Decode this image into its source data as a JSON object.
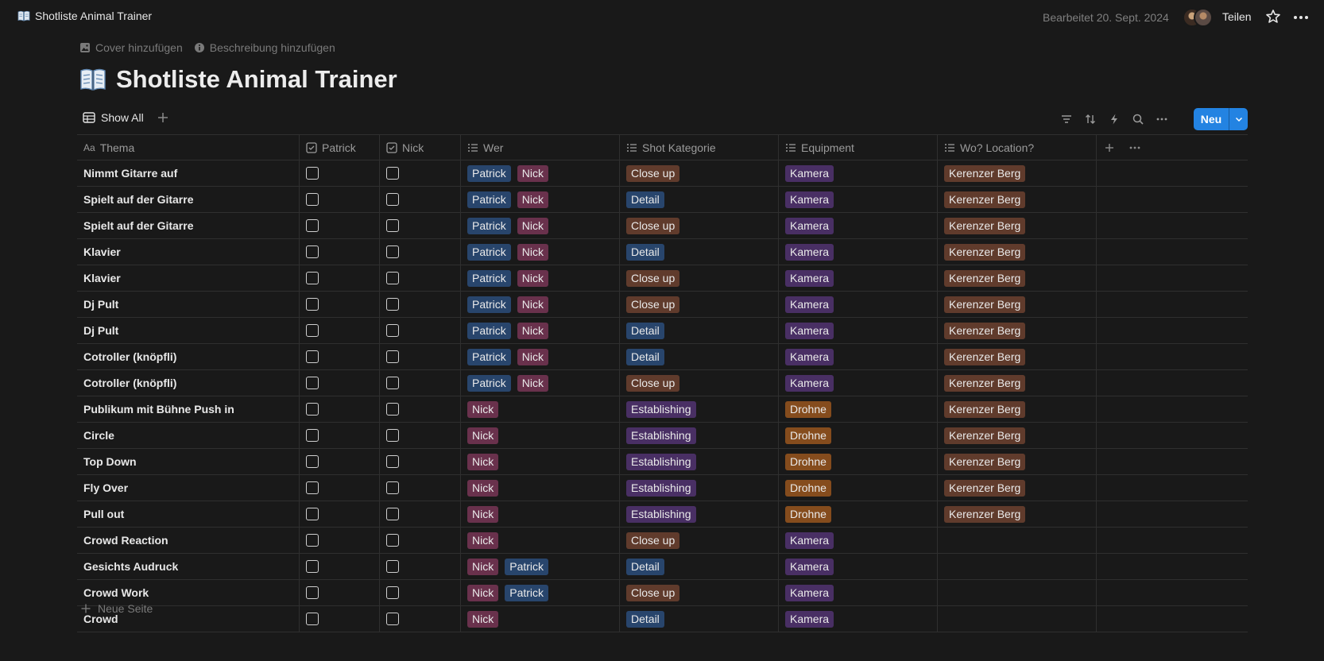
{
  "topbar": {
    "breadcrumb": "Shotliste Animal Trainer",
    "edited": "Bearbeitet 20. Sept. 2024",
    "share_label": "Teilen"
  },
  "header": {
    "add_cover": "Cover hinzufügen",
    "add_description": "Beschreibung hinzufügen",
    "title": "Shotliste Animal Trainer"
  },
  "view": {
    "tab_label": "Show All",
    "new_label": "Neu"
  },
  "table": {
    "columns": [
      {
        "label": "Thema",
        "prefix": "Aa"
      },
      {
        "label": "Patrick"
      },
      {
        "label": "Nick"
      },
      {
        "label": "Wer"
      },
      {
        "label": "Shot Kategorie"
      },
      {
        "label": "Equipment"
      },
      {
        "label": "Wo? Location?"
      }
    ],
    "rows": [
      {
        "thema": "Nimmt Gitarre auf",
        "patrick": false,
        "nick": false,
        "wer": [
          "Patrick",
          "Nick"
        ],
        "kategorie": "Close up",
        "equipment": "Kamera",
        "location": "Kerenzer Berg"
      },
      {
        "thema": "Spielt auf der Gitarre",
        "patrick": false,
        "nick": false,
        "wer": [
          "Patrick",
          "Nick"
        ],
        "kategorie": "Detail",
        "equipment": "Kamera",
        "location": "Kerenzer Berg"
      },
      {
        "thema": "Spielt auf der Gitarre",
        "patrick": false,
        "nick": false,
        "wer": [
          "Patrick",
          "Nick"
        ],
        "kategorie": "Close up",
        "equipment": "Kamera",
        "location": "Kerenzer Berg"
      },
      {
        "thema": "Klavier",
        "patrick": false,
        "nick": false,
        "wer": [
          "Patrick",
          "Nick"
        ],
        "kategorie": "Detail",
        "equipment": "Kamera",
        "location": "Kerenzer Berg"
      },
      {
        "thema": "Klavier",
        "patrick": false,
        "nick": false,
        "wer": [
          "Patrick",
          "Nick"
        ],
        "kategorie": "Close up",
        "equipment": "Kamera",
        "location": "Kerenzer Berg"
      },
      {
        "thema": "Dj Pult",
        "patrick": false,
        "nick": false,
        "wer": [
          "Patrick",
          "Nick"
        ],
        "kategorie": "Close up",
        "equipment": "Kamera",
        "location": "Kerenzer Berg"
      },
      {
        "thema": "Dj Pult",
        "patrick": false,
        "nick": false,
        "wer": [
          "Patrick",
          "Nick"
        ],
        "kategorie": "Detail",
        "equipment": "Kamera",
        "location": "Kerenzer Berg"
      },
      {
        "thema": "Cotroller (knöpfli)",
        "patrick": false,
        "nick": false,
        "wer": [
          "Patrick",
          "Nick"
        ],
        "kategorie": "Detail",
        "equipment": "Kamera",
        "location": "Kerenzer Berg"
      },
      {
        "thema": "Cotroller (knöpfli)",
        "patrick": false,
        "nick": false,
        "wer": [
          "Patrick",
          "Nick"
        ],
        "kategorie": "Close up",
        "equipment": "Kamera",
        "location": "Kerenzer Berg"
      },
      {
        "thema": "Publikum mit Bühne Push in",
        "patrick": false,
        "nick": false,
        "wer": [
          "Nick"
        ],
        "kategorie": "Establishing",
        "equipment": "Drohne",
        "location": "Kerenzer Berg"
      },
      {
        "thema": "Circle",
        "patrick": false,
        "nick": false,
        "wer": [
          "Nick"
        ],
        "kategorie": "Establishing",
        "equipment": "Drohne",
        "location": "Kerenzer Berg"
      },
      {
        "thema": "Top Down",
        "patrick": false,
        "nick": false,
        "wer": [
          "Nick"
        ],
        "kategorie": "Establishing",
        "equipment": "Drohne",
        "location": "Kerenzer Berg"
      },
      {
        "thema": "Fly Over",
        "patrick": false,
        "nick": false,
        "wer": [
          "Nick"
        ],
        "kategorie": "Establishing",
        "equipment": "Drohne",
        "location": "Kerenzer Berg"
      },
      {
        "thema": "Pull out",
        "patrick": false,
        "nick": false,
        "wer": [
          "Nick"
        ],
        "kategorie": "Establishing",
        "equipment": "Drohne",
        "location": "Kerenzer Berg"
      },
      {
        "thema": "Crowd Reaction",
        "patrick": false,
        "nick": false,
        "wer": [
          "Nick"
        ],
        "kategorie": "Close up",
        "equipment": "Kamera",
        "location": ""
      },
      {
        "thema": "Gesichts Audruck",
        "patrick": false,
        "nick": false,
        "wer": [
          "Nick",
          "Patrick"
        ],
        "kategorie": "Detail",
        "equipment": "Kamera",
        "location": ""
      },
      {
        "thema": "Crowd Work",
        "patrick": false,
        "nick": false,
        "wer": [
          "Nick",
          "Patrick"
        ],
        "kategorie": "Close up",
        "equipment": "Kamera",
        "location": ""
      },
      {
        "thema": "Crowd",
        "patrick": false,
        "nick": false,
        "wer": [
          "Nick"
        ],
        "kategorie": "Detail",
        "equipment": "Kamera",
        "location": ""
      }
    ],
    "new_page_label": "Neue Seite"
  },
  "tag_colors": {
    "Patrick": "#28456c",
    "Nick": "#69314c",
    "Close up": "#603b2c",
    "Detail": "#28456c",
    "Establishing": "#492f64",
    "Kamera": "#492f64",
    "Drohne": "#854c1d",
    "Kerenzer Berg": "#603b2c"
  }
}
